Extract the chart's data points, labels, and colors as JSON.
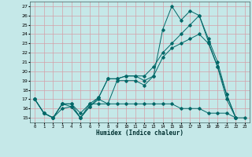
{
  "xlabel": "Humidex (Indice chaleur)",
  "xlim": [
    -0.5,
    23.5
  ],
  "ylim": [
    14.5,
    27.5
  ],
  "xtick_labels": [
    "0",
    "1",
    "2",
    "3",
    "4",
    "5",
    "6",
    "7",
    "8",
    "9",
    "10",
    "11",
    "12",
    "13",
    "14",
    "15",
    "16",
    "17",
    "18",
    "19",
    "20",
    "21",
    "22",
    "23"
  ],
  "ytick_labels": [
    "15",
    "16",
    "17",
    "18",
    "19",
    "20",
    "21",
    "22",
    "23",
    "24",
    "25",
    "26",
    "27"
  ],
  "background_color": "#c5e8e8",
  "grid_color": "#d4a0a8",
  "line_color": "#006868",
  "series": [
    [
      17,
      15.5,
      15,
      16.5,
      16.2,
      15,
      16.2,
      17,
      16.5,
      19,
      19,
      19,
      18.5,
      19.5,
      24.5,
      27,
      25.5,
      26.5,
      26,
      23.2,
      20.5,
      17,
      15
    ],
    [
      17,
      15.5,
      15,
      16.5,
      16.5,
      15,
      16.5,
      17.2,
      19.2,
      19.2,
      19.5,
      19.5,
      19.5,
      20.5,
      22,
      23,
      24,
      25,
      26,
      23.5,
      21,
      17.5,
      15
    ],
    [
      17,
      15.5,
      15,
      16.5,
      16.5,
      15.5,
      16.5,
      16.5,
      16.5,
      16.5,
      16.5,
      16.5,
      16.5,
      16.5,
      16.5,
      16.5,
      16,
      16,
      16,
      15.5,
      15.5,
      15.5,
      15,
      15
    ],
    [
      17,
      15.5,
      15,
      16.0,
      16.2,
      15,
      16.2,
      17.2,
      19.2,
      19.2,
      19.5,
      19.5,
      19.0,
      19.5,
      21.5,
      22.5,
      23.0,
      23.5,
      24.0,
      23.0,
      20.5,
      17.5,
      15
    ]
  ]
}
